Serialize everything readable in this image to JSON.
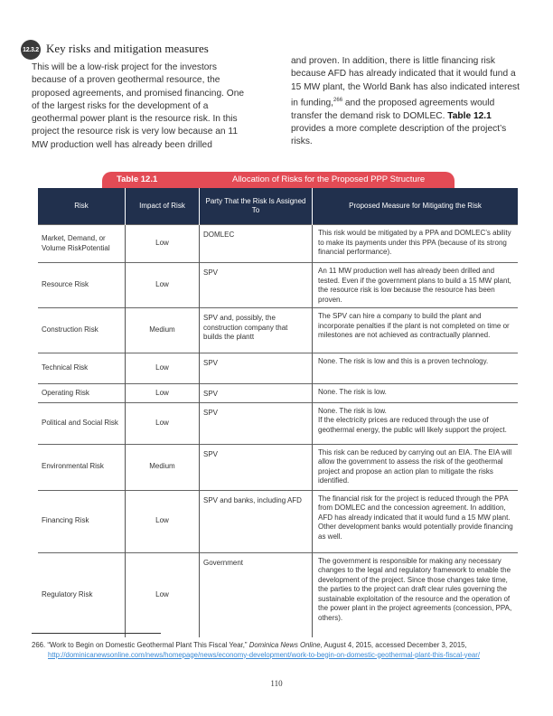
{
  "section": {
    "number": "12.3.2",
    "title": "Key risks and mitigation measures"
  },
  "body": {
    "left": "This will be a low-risk project for the investors because of a proven geothermal resource, the proposed agreements, and promised financing. One of the largest risks for the development of a geothermal power plant is the resource risk. In this project the resource risk is very low because an 11 MW production well has already been drilled",
    "right_a": "and proven. In addition, there is little financing risk because AFD has already indicated that it would fund a 15 MW plant, the World Bank has also indicated interest in funding,",
    "right_sup": "266",
    "right_b": " and the proposed agreements would transfer the demand risk to DOMLEC. ",
    "right_bold": "Table 12.1",
    "right_c": " provides a more complete description of the project’s risks."
  },
  "table": {
    "number": "Table 12.1",
    "caption": "Allocation of Risks for the Proposed PPP Structure",
    "accent_color": "#e34b55",
    "header_color": "#21304d",
    "headers": [
      "Risk",
      "Impact of Risk",
      "Party That the Risk Is Assigned To",
      "Proposed Measure for Mitigating the Risk"
    ],
    "rows": [
      {
        "risk": "Market, Demand, or Volume RiskPotential",
        "impact": "Low",
        "party": "DOMLEC",
        "measure": "This risk would be mitigated by a PPA and DOMLEC’s ability to make its payments under this PPA (because of its strong financial performance)."
      },
      {
        "risk": "Resource Risk",
        "impact": "Low",
        "party": "SPV",
        "measure": "An 11 MW production well has already been drilled and tested. Even if the government plans to build a 15 MW plant, the resource risk is low because the resource has been proven."
      },
      {
        "risk": "Construction Risk",
        "impact": "Medium",
        "party": "SPV and, possibly, the construction company that builds the plantt",
        "measure": "The SPV can hire a company to build the plant and incorporate penalties if the plant is not completed on time or milestones are not achieved as contractually planned."
      },
      {
        "risk": "Technical Risk",
        "impact": "Low",
        "party": "SPV",
        "measure": "None. The risk is low and this is a proven technology."
      },
      {
        "risk": "Operating Risk",
        "impact": "Low",
        "party": "SPV",
        "measure": "None. The risk is low."
      },
      {
        "risk": "Political and Social Risk",
        "impact": "Low",
        "party": "SPV",
        "measure": "None. The risk is low.\nIf the electricity prices are reduced through the use of geothermal energy, the public will likely support the project."
      },
      {
        "risk": "Environmental Risk",
        "impact": "Medium",
        "party": "SPV",
        "measure": "This risk can be reduced by carrying out an EIA. The EIA will allow the government to assess the risk of the geothermal project and propose an action plan to mitigate the risks identified."
      },
      {
        "risk": "Financing Risk",
        "impact": "Low",
        "party": "SPV and banks, including AFD",
        "measure": "The financial risk for the project is reduced through the PPA from DOMLEC and the concession agreement. In addition, AFD has already indicated that it would fund a 15 MW plant. Other development banks would potentially provide financing as well."
      },
      {
        "risk": "Regulatory Risk",
        "impact": "Low",
        "party": "Government",
        "measure": "The government is responsible for making any necessary changes to the legal and regulatory framework to enable the development of the project. Since those changes take time, the parties to the project can draft clear rules governing the sustainable exploitation of the resource and the operation of the power plant in the project agreements (concession, PPA, others)."
      }
    ]
  },
  "footnote": {
    "number": "266.",
    "text_a": "“Work to Begin on Domestic Geothermal Plant This Fiscal Year,” ",
    "source": "Dominica News Online",
    "text_b": ", August 4, 2015, accessed December 3, 2015, ",
    "url": "http://dominicanewsonline.com/news/homepage/news/economy-development/work-to-begin-on-domestic-geothermal-plant-this-fiscal-year/"
  },
  "page_number": "110"
}
